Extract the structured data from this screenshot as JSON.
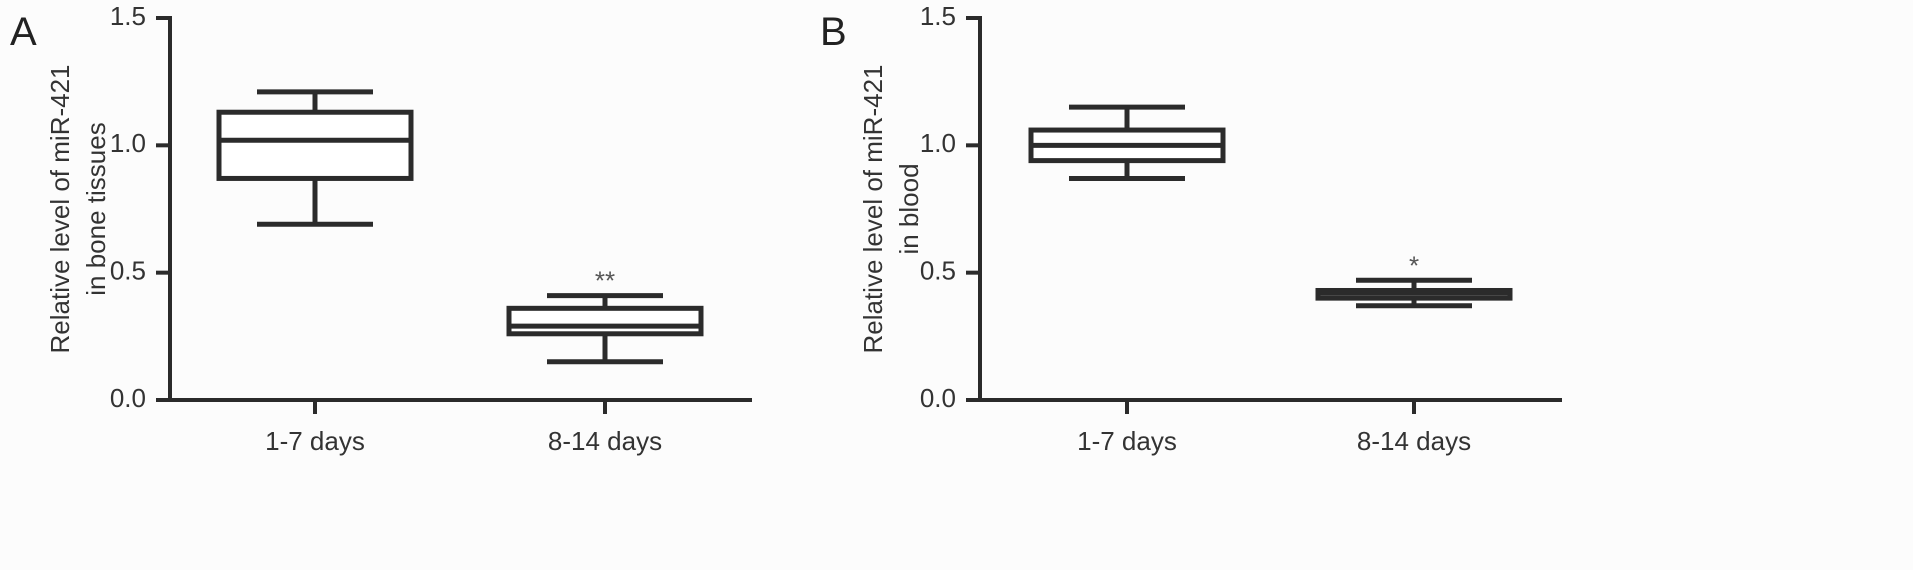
{
  "chart_data": [
    {
      "type": "box",
      "panel_label": "A",
      "ylabel": [
        "Relative level of miR-421",
        "in bone tissues"
      ],
      "ylim": [
        0,
        1.5
      ],
      "yticks": [
        "0.0",
        "0.5",
        "1.0",
        "1.5"
      ],
      "categories": [
        "1-7 days",
        "8-14 days"
      ],
      "boxes": [
        {
          "category": "1-7 days",
          "min": 0.69,
          "q1": 0.87,
          "median": 1.02,
          "q3": 1.13,
          "max": 1.21,
          "annotation": ""
        },
        {
          "category": "8-14 days",
          "min": 0.15,
          "q1": 0.26,
          "median": 0.29,
          "q3": 0.36,
          "max": 0.41,
          "annotation": "**"
        }
      ],
      "grid": false,
      "legend": "none"
    },
    {
      "type": "box",
      "panel_label": "B",
      "ylabel": [
        "Relative level of miR-421",
        "in blood"
      ],
      "ylim": [
        0,
        1.5
      ],
      "yticks": [
        "0.0",
        "0.5",
        "1.0",
        "1.5"
      ],
      "categories": [
        "1-7 days",
        "8-14 days"
      ],
      "boxes": [
        {
          "category": "1-7 days",
          "min": 0.87,
          "q1": 0.94,
          "median": 1.0,
          "q3": 1.06,
          "max": 1.15,
          "annotation": ""
        },
        {
          "category": "8-14 days",
          "min": 0.37,
          "q1": 0.4,
          "median": 0.42,
          "q3": 0.43,
          "max": 0.47,
          "annotation": "*"
        }
      ],
      "grid": false,
      "legend": "none"
    }
  ]
}
